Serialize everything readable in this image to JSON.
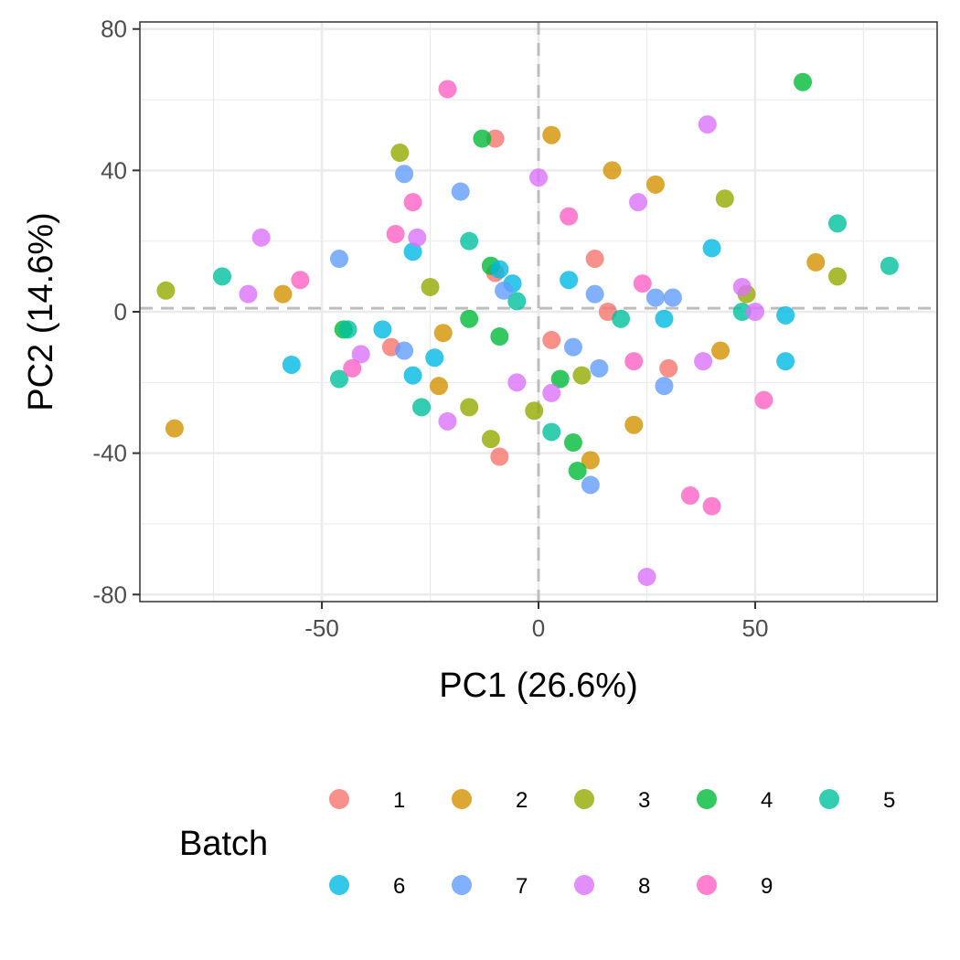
{
  "chart_data": {
    "type": "scatter",
    "xlabel": "PC1 (26.6%)",
    "ylabel": "PC2 (14.6%)",
    "xlim": [
      -92,
      92
    ],
    "ylim": [
      -82,
      82
    ],
    "xticks": [
      -50,
      0,
      50
    ],
    "yticks": [
      80,
      40,
      0,
      -40,
      -80
    ],
    "x_tick_labels": [
      "-50",
      "0",
      "50"
    ],
    "y_tick_labels": [
      "80",
      "40",
      "0",
      "-40",
      "-80"
    ],
    "grid": true,
    "reference_lines": {
      "x": 0,
      "y": 1
    },
    "legend": {
      "title": "Batch",
      "placement": "bottom",
      "items": [
        "1",
        "2",
        "3",
        "4",
        "5",
        "6",
        "7",
        "8",
        "9"
      ]
    },
    "series": [
      {
        "name": "1",
        "color": "#F8766D",
        "points": [
          [
            -10,
            49
          ],
          [
            -10,
            11
          ],
          [
            13,
            15
          ],
          [
            16,
            0
          ],
          [
            3,
            -8
          ],
          [
            -34,
            -10
          ],
          [
            30,
            -16
          ],
          [
            -9,
            -41
          ]
        ]
      },
      {
        "name": "2",
        "color": "#D39200",
        "points": [
          [
            -84,
            -33
          ],
          [
            -59,
            5
          ],
          [
            -22,
            -6
          ],
          [
            -23,
            -21
          ],
          [
            3,
            50
          ],
          [
            17,
            40
          ],
          [
            27,
            36
          ],
          [
            64,
            14
          ],
          [
            42,
            -11
          ],
          [
            22,
            -32
          ],
          [
            12,
            -42
          ]
        ]
      },
      {
        "name": "3",
        "color": "#93AA00",
        "points": [
          [
            -86,
            6
          ],
          [
            -32,
            45
          ],
          [
            -25,
            7
          ],
          [
            -16,
            -27
          ],
          [
            -11,
            -36
          ],
          [
            -1,
            -28
          ],
          [
            10,
            -18
          ],
          [
            43,
            32
          ],
          [
            48,
            5
          ],
          [
            69,
            10
          ]
        ]
      },
      {
        "name": "4",
        "color": "#00BA38",
        "points": [
          [
            -13,
            49
          ],
          [
            -11,
            13
          ],
          [
            -45,
            -5
          ],
          [
            -16,
            -2
          ],
          [
            -9,
            -7
          ],
          [
            5,
            -19
          ],
          [
            8,
            -37
          ],
          [
            9,
            -45
          ],
          [
            61,
            65
          ]
        ]
      },
      {
        "name": "5",
        "color": "#00C19F",
        "points": [
          [
            -73,
            10
          ],
          [
            -44,
            -5
          ],
          [
            -46,
            -19
          ],
          [
            -27,
            -27
          ],
          [
            -16,
            20
          ],
          [
            -5,
            3
          ],
          [
            3,
            -34
          ],
          [
            19,
            -2
          ],
          [
            47,
            0
          ],
          [
            69,
            25
          ],
          [
            81,
            13
          ]
        ]
      },
      {
        "name": "6",
        "color": "#00B9E3",
        "points": [
          [
            -57,
            -15
          ],
          [
            -36,
            -5
          ],
          [
            -29,
            17
          ],
          [
            -29,
            -18
          ],
          [
            -24,
            -13
          ],
          [
            -9,
            12
          ],
          [
            -6,
            8
          ],
          [
            7,
            9
          ],
          [
            29,
            -2
          ],
          [
            40,
            18
          ],
          [
            57,
            -1
          ],
          [
            57,
            -14
          ]
        ]
      },
      {
        "name": "7",
        "color": "#619CFF",
        "points": [
          [
            -46,
            15
          ],
          [
            -31,
            39
          ],
          [
            -31,
            -11
          ],
          [
            -18,
            34
          ],
          [
            -8,
            6
          ],
          [
            8,
            -10
          ],
          [
            13,
            5
          ],
          [
            14,
            -16
          ],
          [
            12,
            -49
          ],
          [
            27,
            4
          ],
          [
            31,
            4
          ],
          [
            29,
            -21
          ]
        ]
      },
      {
        "name": "8",
        "color": "#DB72FB",
        "points": [
          [
            -64,
            21
          ],
          [
            -67,
            5
          ],
          [
            -41,
            -12
          ],
          [
            -28,
            21
          ],
          [
            -21,
            -31
          ],
          [
            -5,
            -20
          ],
          [
            0,
            38
          ],
          [
            3,
            -23
          ],
          [
            23,
            31
          ],
          [
            39,
            53
          ],
          [
            47,
            7
          ],
          [
            50,
            0
          ],
          [
            38,
            -14
          ],
          [
            25,
            -75
          ]
        ]
      },
      {
        "name": "9",
        "color": "#FF61C3",
        "points": [
          [
            -55,
            9
          ],
          [
            -43,
            -16
          ],
          [
            -33,
            22
          ],
          [
            -29,
            31
          ],
          [
            -21,
            63
          ],
          [
            7,
            27
          ],
          [
            24,
            8
          ],
          [
            22,
            -14
          ],
          [
            35,
            -52
          ],
          [
            40,
            -55
          ],
          [
            52,
            -25
          ]
        ]
      }
    ]
  }
}
